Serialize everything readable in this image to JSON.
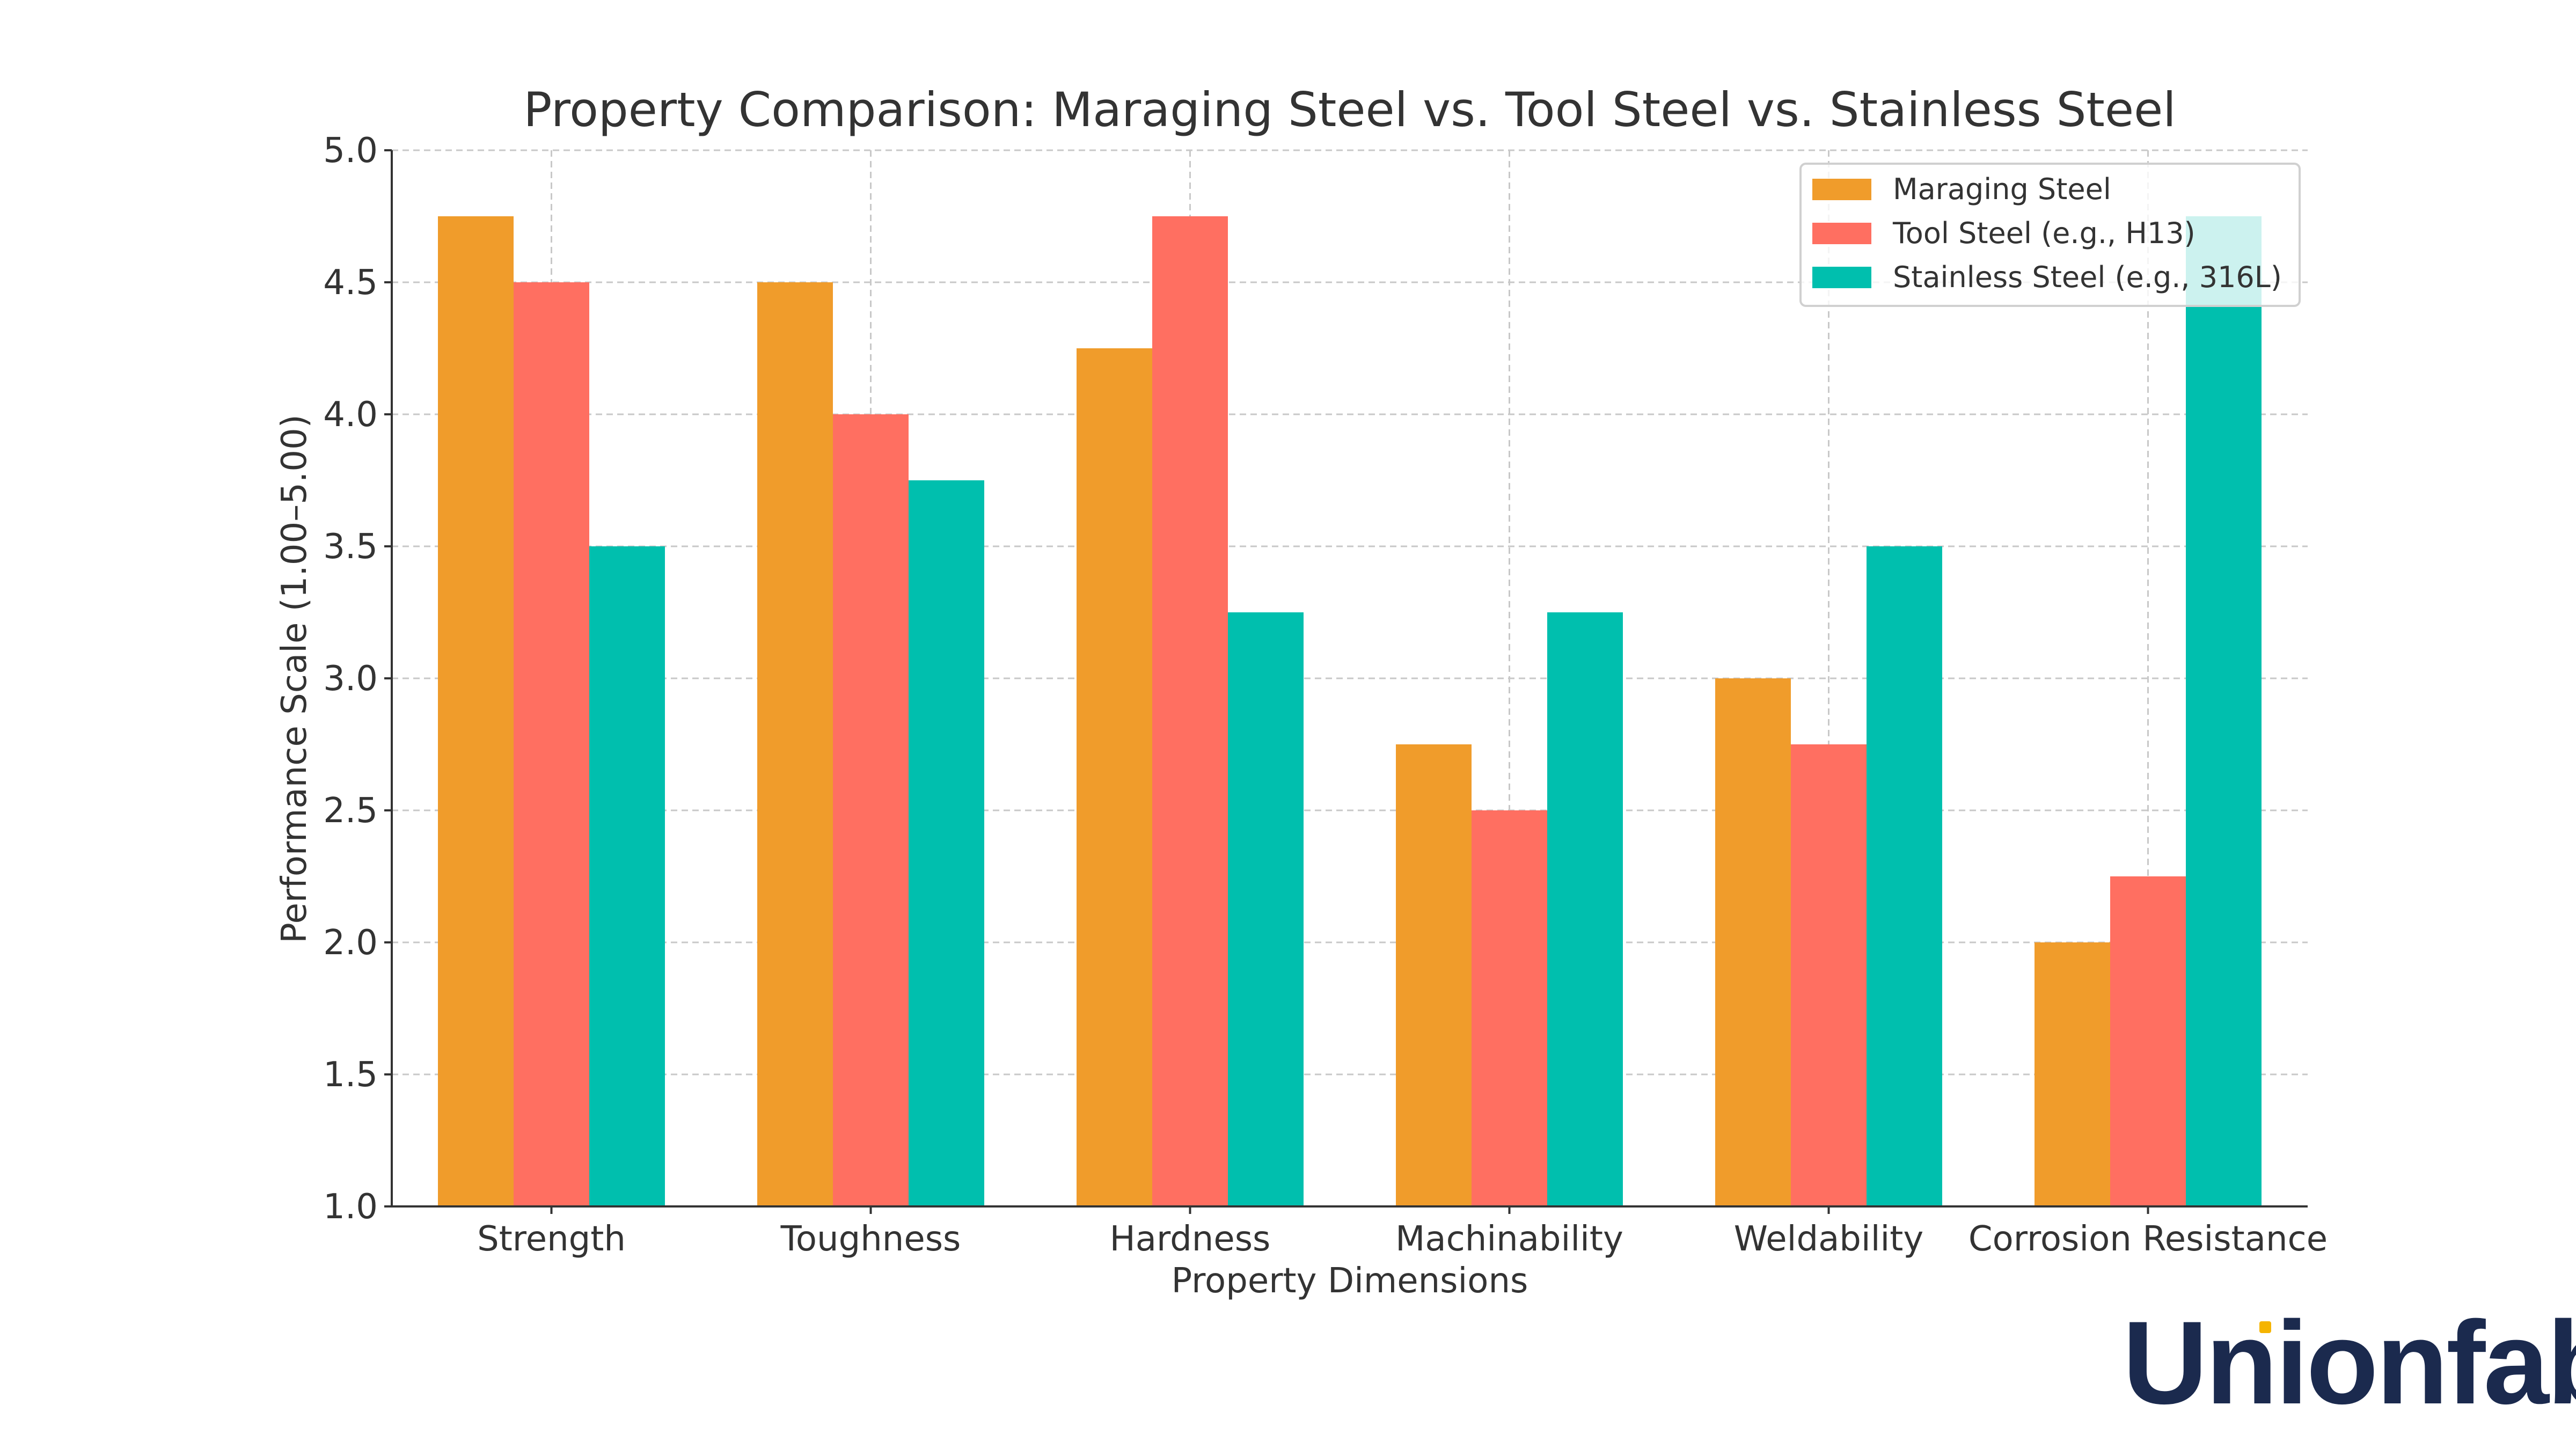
{
  "chart_data": {
    "type": "bar",
    "title": "Property Comparison: Maraging Steel vs. Tool Steel vs. Stainless Steel",
    "xlabel": "Property Dimensions",
    "ylabel": "Performance Scale (1.00–5.00)",
    "ylim": [
      1.0,
      5.0
    ],
    "yticks": [
      "1.0",
      "1.5",
      "2.0",
      "2.5",
      "3.0",
      "3.5",
      "4.0",
      "4.5",
      "5.0"
    ],
    "grid": true,
    "legend_position": "top-right",
    "categories": [
      "Strength",
      "Toughness",
      "Hardness",
      "Machinability",
      "Weldability",
      "Corrosion Resistance"
    ],
    "series": [
      {
        "name": "Maraging Steel",
        "color": "#f09c2b",
        "values": [
          4.75,
          4.5,
          4.25,
          2.75,
          3.0,
          2.0
        ]
      },
      {
        "name": "Tool Steel (e.g., H13)",
        "color": "#ff6f61",
        "values": [
          4.5,
          4.0,
          4.75,
          2.5,
          2.75,
          2.25
        ]
      },
      {
        "name": "Stainless Steel (e.g., 316L)",
        "color": "#00bfae",
        "values": [
          3.5,
          3.75,
          3.25,
          3.25,
          3.5,
          4.75
        ]
      }
    ]
  },
  "logo": {
    "text": "Unionfab",
    "color": "#1b2a4e",
    "accent_color": "#f5b400"
  }
}
